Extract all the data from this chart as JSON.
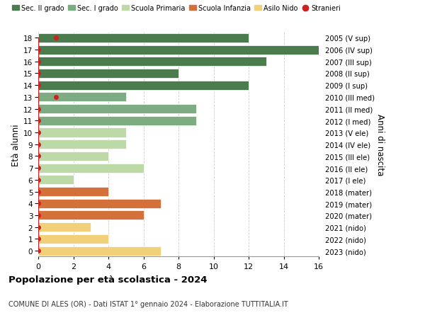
{
  "ages": [
    18,
    17,
    16,
    15,
    14,
    13,
    12,
    11,
    10,
    9,
    8,
    7,
    6,
    5,
    4,
    3,
    2,
    1,
    0
  ],
  "right_labels": [
    "2005 (V sup)",
    "2006 (IV sup)",
    "2007 (III sup)",
    "2008 (II sup)",
    "2009 (I sup)",
    "2010 (III med)",
    "2011 (II med)",
    "2012 (I med)",
    "2013 (V ele)",
    "2014 (IV ele)",
    "2015 (III ele)",
    "2016 (II ele)",
    "2017 (I ele)",
    "2018 (mater)",
    "2019 (mater)",
    "2020 (mater)",
    "2021 (nido)",
    "2022 (nido)",
    "2023 (nido)"
  ],
  "values": [
    12,
    16,
    13,
    8,
    12,
    5,
    9,
    9,
    5,
    5,
    4,
    6,
    2,
    4,
    7,
    6,
    3,
    4,
    7
  ],
  "colors": [
    "#4a7c4e",
    "#4a7c4e",
    "#4a7c4e",
    "#4a7c4e",
    "#4a7c4e",
    "#7dab82",
    "#7dab82",
    "#7dab82",
    "#bdd9a8",
    "#bdd9a8",
    "#bdd9a8",
    "#bdd9a8",
    "#bdd9a8",
    "#d4703a",
    "#d4703a",
    "#d4703a",
    "#f2d07a",
    "#f2d07a",
    "#f2d07a"
  ],
  "stranieri_x": [
    1,
    0,
    0,
    0,
    0,
    1,
    0,
    0,
    0,
    0,
    0,
    0,
    0,
    0,
    0,
    0,
    0,
    0,
    0
  ],
  "legend_labels": [
    "Sec. II grado",
    "Sec. I grado",
    "Scuola Primaria",
    "Scuola Infanzia",
    "Asilo Nido",
    "Stranieri"
  ],
  "legend_colors": [
    "#4a7c4e",
    "#7dab82",
    "#bdd9a8",
    "#d4703a",
    "#f2d07a",
    "#cc2222"
  ],
  "title": "Popolazione per età scolastica - 2024",
  "subtitle": "COMUNE DI ALES (OR) - Dati ISTAT 1° gennaio 2024 - Elaborazione TUTTITALIA.IT",
  "ylabel_left": "Età alunni",
  "ylabel_right": "Anni di nascita",
  "xlim": [
    0,
    16
  ],
  "bar_height": 0.78,
  "bg_color": "#ffffff",
  "grid_color": "#cccccc",
  "stranieri_color": "#cc2222",
  "stranieri_marker_size": 5
}
